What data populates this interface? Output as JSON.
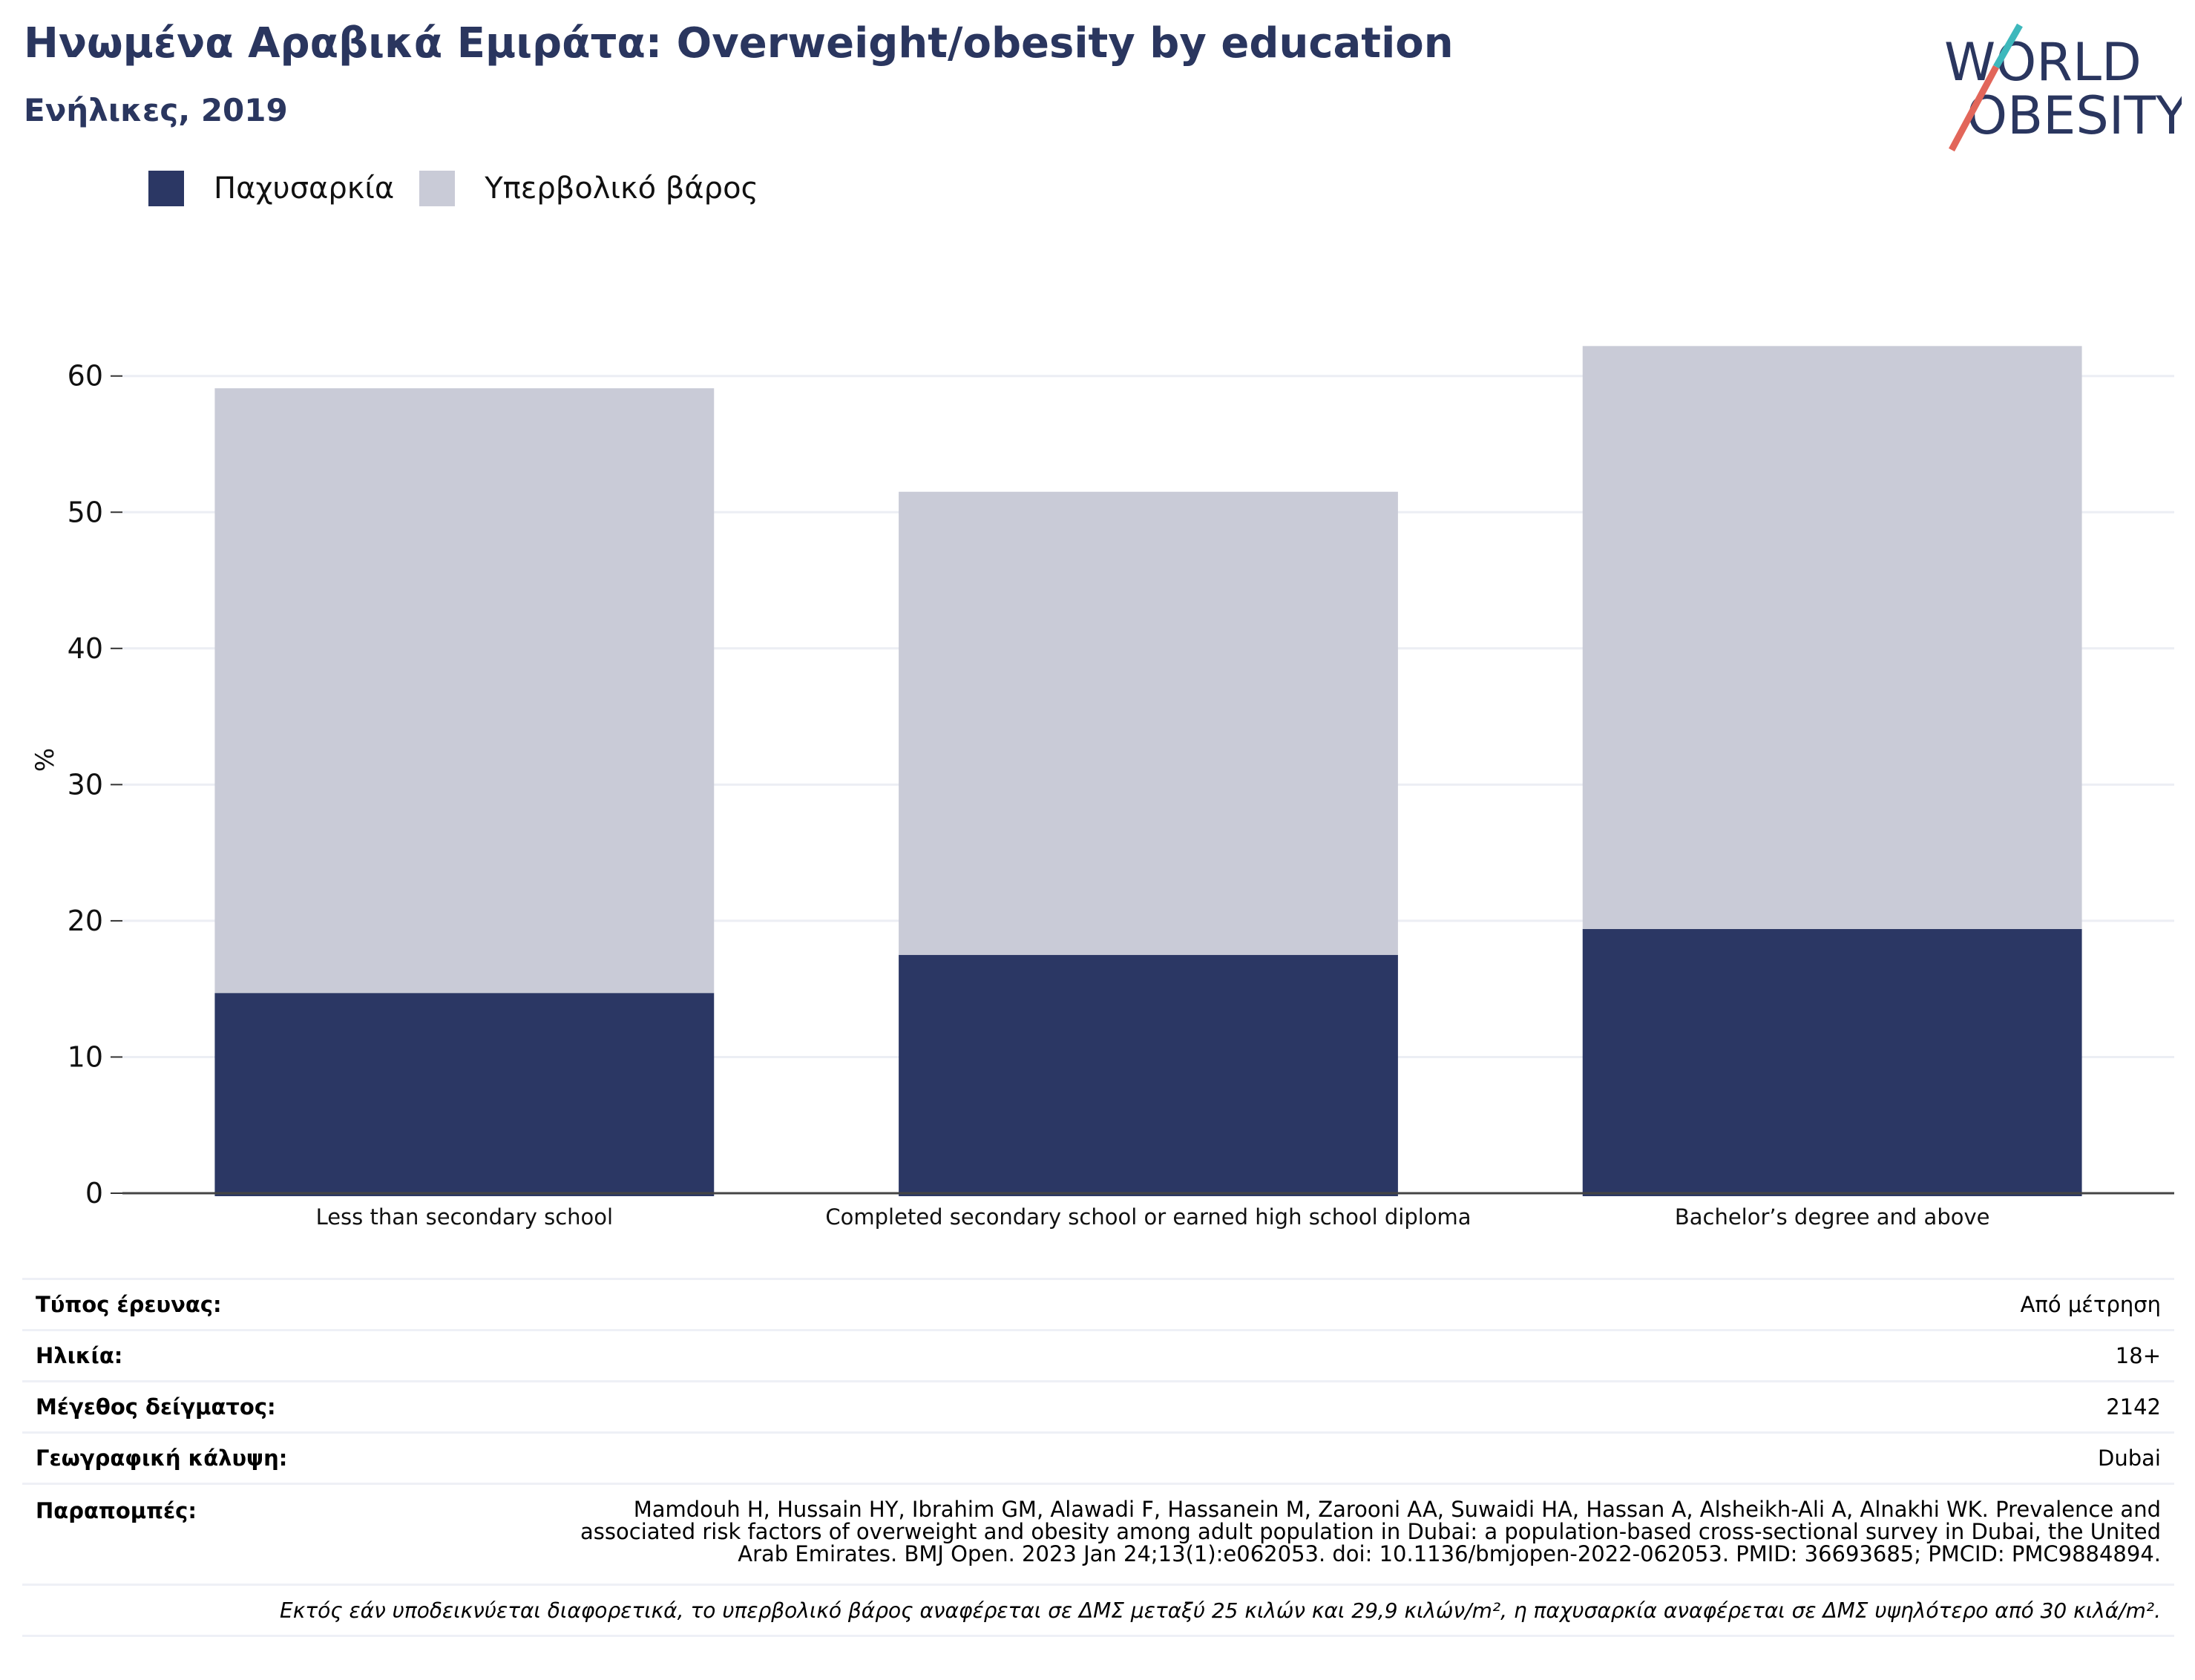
{
  "header": {
    "title": "Ηνωμένα Αραβικά Εμιράτα: Overweight/obesity by education",
    "subtitle": "Ενήλικες, 2019"
  },
  "logo": {
    "line1": "WORLD",
    "line2": "OBESITY",
    "text_color": "#2a365f",
    "slash_colors": [
      "#e2665a",
      "#3eb8bc"
    ]
  },
  "legend": {
    "items": [
      {
        "label": "Παχυσαρκία",
        "color": "#2b3764"
      },
      {
        "label": "Υπερβολικό βάρος",
        "color": "#c9cbd7"
      }
    ]
  },
  "chart_data": {
    "type": "bar",
    "stacked": true,
    "categories": [
      "Less than secondary school",
      "Completed secondary school or earned  high school diploma",
      "Bachelor’s degree and above"
    ],
    "series": [
      {
        "name": "Παχυσαρκία",
        "values": [
          14.7,
          17.5,
          19.4
        ],
        "color": "#2b3764"
      },
      {
        "name": "Υπερβολικό βάρος",
        "values": [
          44.4,
          34.0,
          42.8
        ],
        "color": "#c9cbd7"
      }
    ],
    "ylabel": "%",
    "ylim": [
      0,
      62
    ],
    "yticks": [
      0,
      10,
      20,
      30,
      40,
      50,
      60
    ],
    "grid": true,
    "legend_position": "top-left"
  },
  "info": {
    "rows": [
      {
        "label": "Τύπος έρευνας:",
        "value": "Από μέτρηση"
      },
      {
        "label": "Ηλικία:",
        "value": "18+"
      },
      {
        "label": "Μέγεθος δείγματος:",
        "value": "2142"
      },
      {
        "label": "Γεωγραφική κάλυψη:",
        "value": "Dubai"
      }
    ],
    "references": {
      "label": "Παραπομπές:",
      "value": "Mamdouh H, Hussain HY, Ibrahim GM, Alawadi F, Hassanein M, Zarooni AA, Suwaidi HA, Hassan A, Alsheikh-Ali A, Alnakhi WK. Prevalence and associated risk factors of overweight and obesity among adult population in Dubai: a population-based cross-sectional survey in Dubai, the United Arab Emirates. BMJ Open. 2023 Jan 24;13(1):e062053. doi: 10.1136/bmjopen-2022-062053. PMID: 36693685; PMCID: PMC9884894."
    },
    "note": "Εκτός εάν υποδεικνύεται διαφορετικά, το υπερβολικό βάρος αναφέρεται σε ΔΜΣ μεταξύ 25 κιλών και 29,9 κιλών/m², η παχυσαρκία αναφέρεται σε ΔΜΣ υψηλότερο από 30 κιλά/m²."
  }
}
